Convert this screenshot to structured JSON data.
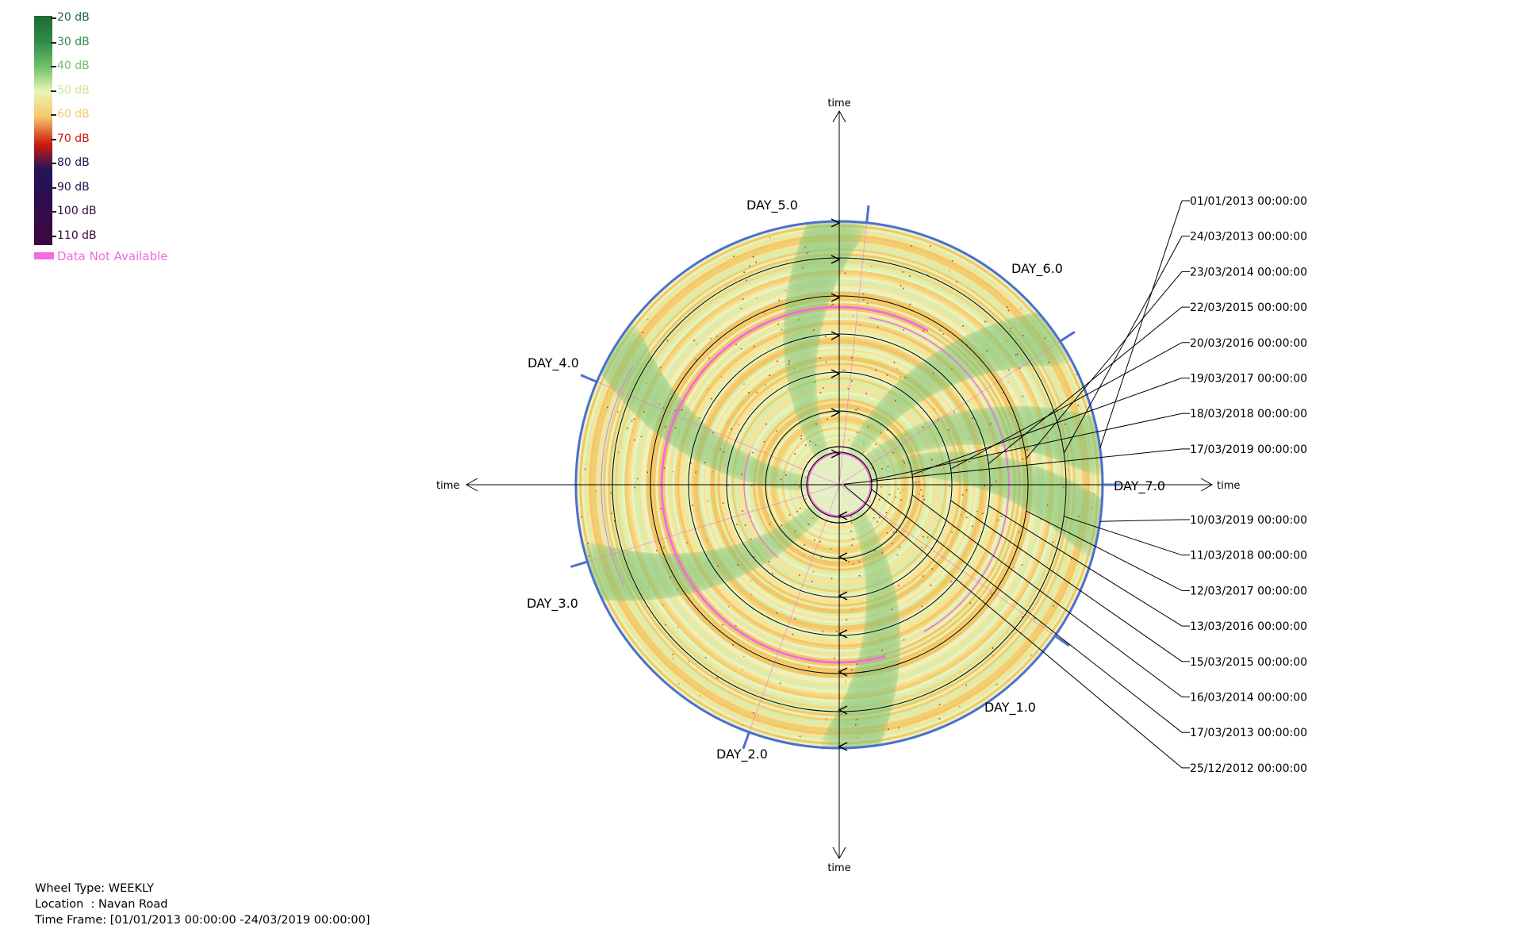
{
  "chart_data": {
    "type": "heatmap",
    "subtype": "radial-weekly-wheel",
    "color_scale": {
      "levels": [
        {
          "label": "20 dB",
          "color": "#1d6a36"
        },
        {
          "label": "30 dB",
          "color": "#2f8a4a"
        },
        {
          "label": "40 dB",
          "color": "#6fbf6a"
        },
        {
          "label": "50 dB",
          "color": "#e8f4b8"
        },
        {
          "label": "60 dB",
          "color": "#f5c86a"
        },
        {
          "label": "70 dB",
          "color": "#cc1a10"
        },
        {
          "label": "80 dB",
          "color": "#231457"
        },
        {
          "label": "90 dB",
          "color": "#2b0d52"
        },
        {
          "label": "100 dB",
          "color": "#360b48"
        },
        {
          "label": "110 dB",
          "color": "#3e063e"
        }
      ],
      "not_available": {
        "label": "Data Not Available",
        "color": "#f06ce0"
      }
    },
    "axis_label": "time",
    "day_labels": [
      "DAY_1.0",
      "DAY_2.0",
      "DAY_3.0",
      "DAY_4.0",
      "DAY_5.0",
      "DAY_6.0",
      "DAY_7.0"
    ],
    "ring_dates_start": [
      "01/01/2013 00:00:00",
      "24/03/2013 00:00:00",
      "23/03/2014 00:00:00",
      "22/03/2015 00:00:00",
      "20/03/2016 00:00:00",
      "19/03/2017 00:00:00",
      "18/03/2018 00:00:00",
      "17/03/2019 00:00:00"
    ],
    "ring_dates_end": [
      "10/03/2019 00:00:00",
      "11/03/2018 00:00:00",
      "12/03/2017 00:00:00",
      "13/03/2016 00:00:00",
      "15/03/2015 00:00:00",
      "16/03/2014 00:00:00",
      "17/03/2013 00:00:00",
      "25/12/2012 00:00:00"
    ]
  },
  "info": {
    "wheel_type": "Wheel Type: WEEKLY",
    "location": "Location  : Navan Road",
    "time_frame": "Time Frame: [01/01/2013 00:00:00 -24/03/2019 00:00:00]"
  }
}
